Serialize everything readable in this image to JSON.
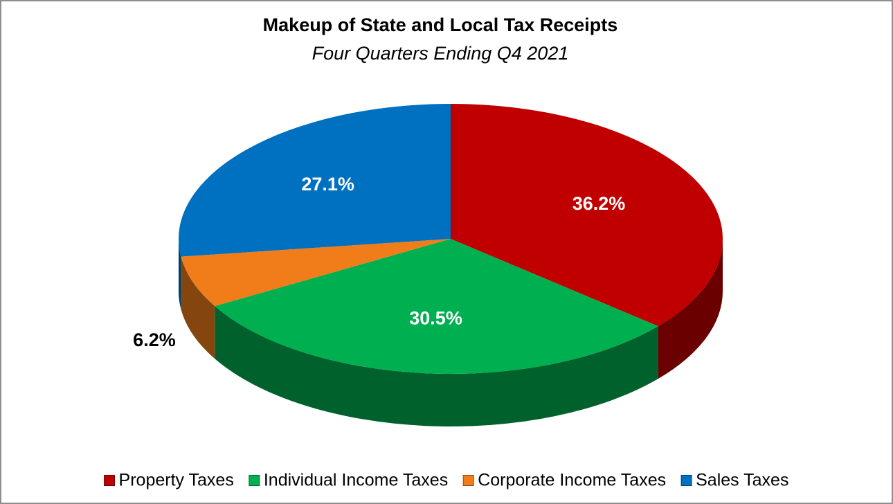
{
  "chart_data": {
    "type": "pie",
    "title": "Makeup of State and Local Tax Receipts",
    "subtitle": "Four Quarters Ending Q4 2021",
    "categories": [
      "Property Taxes",
      "Individual Income Taxes",
      "Corporate Income Taxes",
      "Sales Taxes"
    ],
    "values": [
      36.2,
      30.5,
      6.2,
      27.1
    ],
    "value_labels": [
      "36.2%",
      "30.5%",
      "6.2%",
      "27.1%"
    ],
    "colors": [
      "#c00000",
      "#00b050",
      "#f07d1a",
      "#0070c0"
    ],
    "legend": "bottom"
  }
}
